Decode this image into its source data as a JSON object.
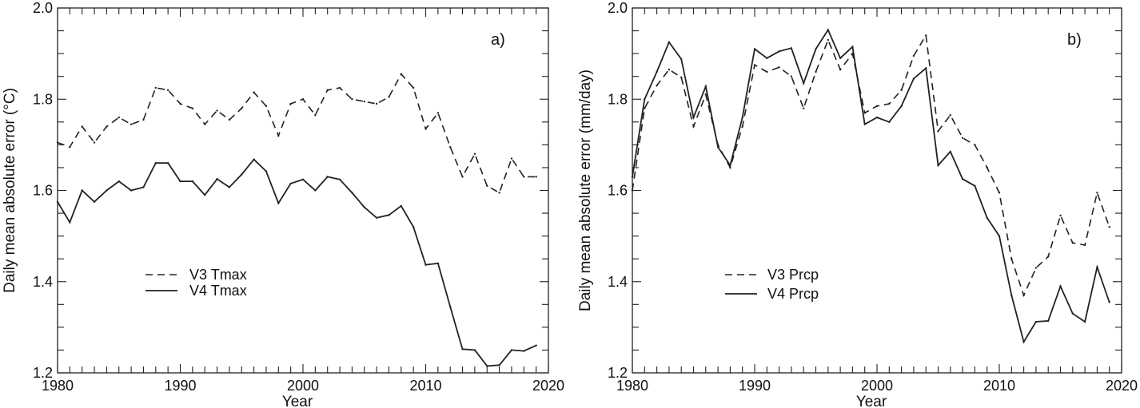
{
  "chart_data": [
    {
      "type": "line",
      "panel_label": "a)",
      "xlabel": "Year",
      "ylabel": "Daily mean absolute error (°C)",
      "xlim": [
        1980,
        2020
      ],
      "ylim": [
        1.2,
        2.0
      ],
      "xticks": [
        "1980",
        "1990",
        "2000",
        "2010",
        "2020"
      ],
      "yticks": [
        "1.2",
        "1.4",
        "1.6",
        "1.8",
        "2.0"
      ],
      "legend_position": "left-center",
      "x": [
        1980,
        1981,
        1982,
        1983,
        1984,
        1985,
        1986,
        1987,
        1988,
        1989,
        1990,
        1991,
        1992,
        1993,
        1994,
        1995,
        1996,
        1997,
        1998,
        1999,
        2000,
        2001,
        2002,
        2003,
        2004,
        2005,
        2006,
        2007,
        2008,
        2009,
        2010,
        2011,
        2012,
        2013,
        2014,
        2015,
        2016,
        2017,
        2018,
        2019
      ],
      "series": [
        {
          "name": "V3 Tmax",
          "style": "dashed",
          "values": [
            1.705,
            1.695,
            1.74,
            1.705,
            1.74,
            1.76,
            1.745,
            1.755,
            1.825,
            1.82,
            1.79,
            1.78,
            1.745,
            1.775,
            1.755,
            1.78,
            1.815,
            1.785,
            1.72,
            1.79,
            1.8,
            1.765,
            1.82,
            1.825,
            1.8,
            1.795,
            1.79,
            1.805,
            1.855,
            1.825,
            1.735,
            1.77,
            1.695,
            1.63,
            1.68,
            1.61,
            1.595,
            1.67,
            1.63,
            1.63
          ]
        },
        {
          "name": "V4 Tmax",
          "style": "solid",
          "values": [
            1.575,
            1.53,
            1.6,
            1.575,
            1.6,
            1.62,
            1.6,
            1.607,
            1.66,
            1.66,
            1.62,
            1.62,
            1.59,
            1.625,
            1.607,
            1.635,
            1.668,
            1.642,
            1.572,
            1.615,
            1.624,
            1.6,
            1.63,
            1.624,
            1.595,
            1.563,
            1.54,
            1.546,
            1.566,
            1.52,
            1.437,
            1.44,
            1.345,
            1.252,
            1.25,
            1.215,
            1.217,
            1.25,
            1.248,
            1.26
          ]
        }
      ]
    },
    {
      "type": "line",
      "panel_label": "b)",
      "xlabel": "Year",
      "ylabel": "Daily mean absolute error (mm/day)",
      "xlim": [
        1980,
        2020
      ],
      "ylim": [
        1.2,
        2.0
      ],
      "xticks": [
        "1980",
        "1990",
        "2000",
        "2010",
        "2020"
      ],
      "yticks": [
        "1.2",
        "1.4",
        "1.6",
        "1.8",
        "2.0"
      ],
      "legend_position": "left-center",
      "x": [
        1980,
        1981,
        1982,
        1983,
        1984,
        1985,
        1986,
        1987,
        1988,
        1989,
        1990,
        1991,
        1992,
        1993,
        1994,
        1995,
        1996,
        1997,
        1998,
        1999,
        2000,
        2001,
        2002,
        2003,
        2004,
        2005,
        2006,
        2007,
        2008,
        2009,
        2010,
        2011,
        2012,
        2013,
        2014,
        2015,
        2016,
        2017,
        2018,
        2019
      ],
      "series": [
        {
          "name": "V3 Prcp",
          "style": "dashed",
          "values": [
            1.6,
            1.78,
            1.83,
            1.865,
            1.848,
            1.74,
            1.81,
            1.7,
            1.65,
            1.74,
            1.875,
            1.86,
            1.87,
            1.85,
            1.78,
            1.86,
            1.93,
            1.865,
            1.9,
            1.77,
            1.785,
            1.79,
            1.82,
            1.895,
            1.94,
            1.73,
            1.765,
            1.715,
            1.7,
            1.65,
            1.595,
            1.45,
            1.37,
            1.43,
            1.455,
            1.545,
            1.485,
            1.48,
            1.595,
            1.52
          ]
        },
        {
          "name": "V4 Prcp",
          "style": "solid",
          "values": [
            1.63,
            1.8,
            1.86,
            1.925,
            1.888,
            1.76,
            1.828,
            1.695,
            1.655,
            1.76,
            1.91,
            1.89,
            1.905,
            1.912,
            1.835,
            1.91,
            1.952,
            1.89,
            1.915,
            1.745,
            1.76,
            1.75,
            1.785,
            1.845,
            1.868,
            1.655,
            1.685,
            1.625,
            1.61,
            1.54,
            1.5,
            1.37,
            1.268,
            1.312,
            1.314,
            1.39,
            1.33,
            1.312,
            1.432,
            1.355
          ]
        }
      ]
    }
  ]
}
